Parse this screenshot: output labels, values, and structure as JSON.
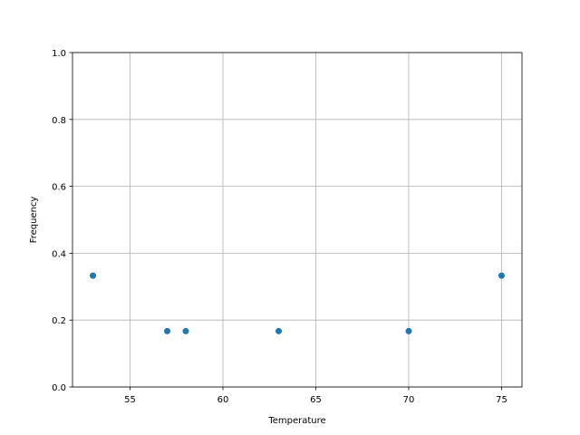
{
  "chart_data": {
    "type": "scatter",
    "title": "",
    "xlabel": "Temperature",
    "ylabel": "Frequency",
    "xlim": [
      51.9,
      76.1
    ],
    "ylim": [
      0.0,
      1.0
    ],
    "xticks": [
      55,
      60,
      65,
      70,
      75
    ],
    "xtick_labels": [
      "55",
      "60",
      "65",
      "70",
      "75"
    ],
    "yticks": [
      0.0,
      0.2,
      0.4,
      0.6,
      0.8,
      1.0
    ],
    "ytick_labels": [
      "0.0",
      "0.2",
      "0.4",
      "0.6",
      "0.8",
      "1.0"
    ],
    "grid": true,
    "points": [
      {
        "x": 53,
        "y": 0.333
      },
      {
        "x": 57,
        "y": 0.167
      },
      {
        "x": 58,
        "y": 0.167
      },
      {
        "x": 63,
        "y": 0.167
      },
      {
        "x": 70,
        "y": 0.167
      },
      {
        "x": 75,
        "y": 0.333
      }
    ],
    "color": "#1f77b4"
  }
}
